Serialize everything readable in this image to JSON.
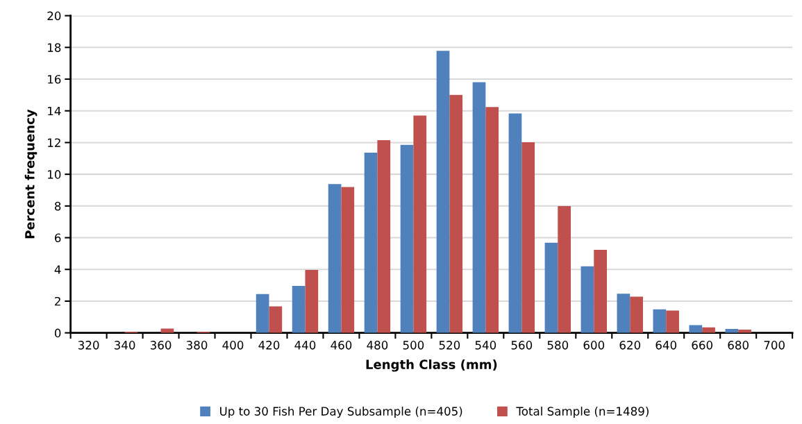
{
  "chart_data": {
    "type": "bar",
    "xlabel": "Length Class (mm)",
    "ylabel": "Percent frequency",
    "categories": [
      "320",
      "340",
      "360",
      "380",
      "400",
      "420",
      "440",
      "460",
      "480",
      "500",
      "520",
      "540",
      "560",
      "580",
      "600",
      "620",
      "640",
      "660",
      "680",
      "700"
    ],
    "series": [
      {
        "name": "Up to 30 Fish Per Day Subsample (n=405)",
        "color": "#4f81bd",
        "values": [
          0,
          0,
          0,
          0,
          0,
          2.45,
          2.96,
          9.38,
          11.36,
          11.85,
          17.78,
          15.8,
          13.83,
          5.68,
          4.2,
          2.47,
          1.48,
          0.49,
          0.25,
          0
        ]
      },
      {
        "name": "Total Sample (n=1489)",
        "color": "#c0504d",
        "values": [
          0,
          0.07,
          0.27,
          0.07,
          0,
          1.67,
          3.97,
          9.2,
          12.15,
          13.7,
          15.0,
          14.24,
          12.02,
          7.99,
          5.24,
          2.28,
          1.41,
          0.34,
          0.2,
          0
        ]
      }
    ],
    "ylim": [
      0,
      20
    ],
    "yticks": [
      0,
      2,
      4,
      6,
      8,
      10,
      12,
      14,
      16,
      18,
      20
    ],
    "grid": "y",
    "legend": "bottom"
  }
}
